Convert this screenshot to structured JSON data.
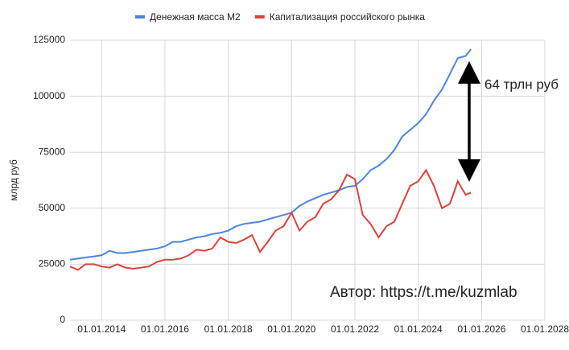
{
  "chart_data": {
    "type": "line",
    "y_label": "млрд руб",
    "annotations": [
      "64 трлн руб",
      "Автор: https://t.me/kuzmlab"
    ],
    "x": [
      "2013-01-01",
      "2013-04-01",
      "2013-07-01",
      "2013-10-01",
      "2014-01-01",
      "2014-04-01",
      "2014-07-01",
      "2014-10-01",
      "2015-01-01",
      "2015-04-01",
      "2015-07-01",
      "2015-10-01",
      "2016-01-01",
      "2016-04-01",
      "2016-07-01",
      "2016-10-01",
      "2017-01-01",
      "2017-04-01",
      "2017-07-01",
      "2017-10-01",
      "2018-01-01",
      "2018-04-01",
      "2018-07-01",
      "2018-10-01",
      "2019-01-01",
      "2019-04-01",
      "2019-07-01",
      "2019-10-01",
      "2020-01-01",
      "2020-04-01",
      "2020-07-01",
      "2020-10-01",
      "2021-01-01",
      "2021-04-01",
      "2021-07-01",
      "2021-10-01",
      "2022-01-01",
      "2022-04-01",
      "2022-07-01",
      "2022-10-01",
      "2023-01-01",
      "2023-04-01",
      "2023-07-01",
      "2023-10-01",
      "2024-01-01",
      "2024-04-01",
      "2024-07-01",
      "2024-10-01",
      "2025-01-01",
      "2025-04-01",
      "2025-07-01",
      "2025-09-01"
    ],
    "series": [
      {
        "name": "Денежная масса М2",
        "color": "#4a86d8",
        "values": [
          27000,
          27500,
          28000,
          28500,
          29000,
          31000,
          30000,
          30000,
          30500,
          31000,
          31500,
          32000,
          33000,
          35000,
          35000,
          36000,
          37000,
          37500,
          38500,
          39000,
          40000,
          42000,
          43000,
          43500,
          44000,
          45000,
          46000,
          47000,
          48000,
          51000,
          53000,
          54500,
          56000,
          57000,
          58000,
          59500,
          60000,
          63000,
          67000,
          69000,
          72000,
          76000,
          82000,
          85000,
          88000,
          92000,
          98000,
          103000,
          110000,
          117000,
          118000,
          121000
        ]
      },
      {
        "name": "Капитализация российского рынка",
        "color": "#d9423a",
        "values": [
          24000,
          22500,
          25000,
          25000,
          24000,
          23500,
          25000,
          23500,
          23000,
          23500,
          24000,
          26000,
          27000,
          27000,
          27500,
          29000,
          31500,
          31000,
          32000,
          37000,
          35000,
          34500,
          36000,
          38000,
          30500,
          35000,
          40000,
          42000,
          48000,
          40000,
          44000,
          46000,
          52000,
          54000,
          58000,
          65000,
          63000,
          47000,
          43000,
          37000,
          42000,
          44000,
          52000,
          60000,
          62000,
          67000,
          60000,
          50000,
          52000,
          62000,
          56000,
          57000
        ]
      }
    ],
    "xlim": [
      "2013-01-01",
      "2028-01-01"
    ],
    "xticks": [
      {
        "value": "2014-01-01",
        "label": "01.01.2014"
      },
      {
        "value": "2016-01-01",
        "label": "01.01.2016"
      },
      {
        "value": "2018-01-01",
        "label": "01.01.2018"
      },
      {
        "value": "2020-01-01",
        "label": "01.01.2020"
      },
      {
        "value": "2022-01-01",
        "label": "01.01.2022"
      },
      {
        "value": "2024-01-01",
        "label": "01.01.2024"
      },
      {
        "value": "2026-01-01",
        "label": "01.01.2026"
      },
      {
        "value": "2028-01-01",
        "label": "01.01.2028"
      }
    ],
    "ylim": [
      0,
      125000
    ],
    "yticks": [
      0,
      25000,
      50000,
      75000,
      100000,
      125000
    ],
    "grid": true
  }
}
